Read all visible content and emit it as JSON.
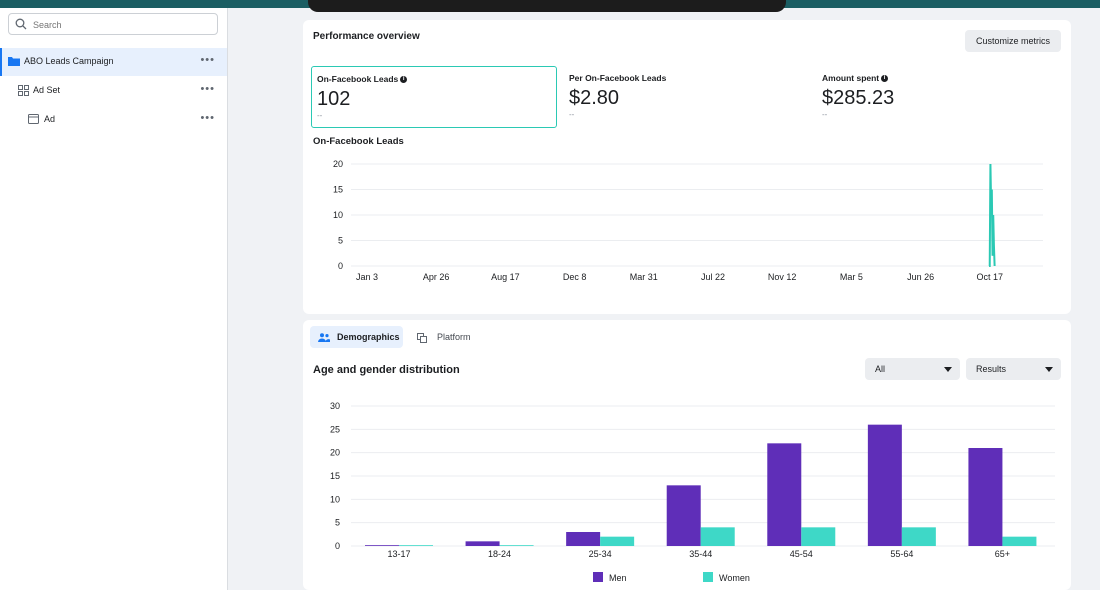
{
  "sidebar": {
    "search_placeholder": "Search",
    "items": [
      {
        "label": "ABO Leads Campaign",
        "icon": "folder-icon"
      },
      {
        "label": "Ad Set",
        "icon": "grid-icon"
      },
      {
        "label": "Ad",
        "icon": "ad-icon"
      }
    ],
    "more_label": "•••"
  },
  "performance": {
    "title": "Performance overview",
    "customize_label": "Customize metrics",
    "metrics": [
      {
        "label": "On-Facebook Leads",
        "value": "102",
        "sub": "--",
        "info": true
      },
      {
        "label": "Per On-Facebook Leads",
        "value": "$2.80",
        "sub": "--",
        "info": false
      },
      {
        "label": "Amount spent",
        "value": "$285.23",
        "sub": "--",
        "info": true
      }
    ],
    "info_glyph": "i",
    "accent_color": "#2bc9b4"
  },
  "line_chart_data": {
    "type": "line",
    "title": "On-Facebook Leads",
    "x_ticks": [
      "Jan 3",
      "Apr 26",
      "Aug 17",
      "Dec 8",
      "Mar 31",
      "Jul 22",
      "Nov 12",
      "Mar 5",
      "Jun 26",
      "Oct 17"
    ],
    "y_ticks": [
      0,
      5,
      10,
      15,
      20
    ],
    "ylim": [
      0,
      20
    ],
    "color": "#2bc9b4",
    "spike_series": [
      0,
      0,
      20,
      12,
      15,
      2,
      10,
      4,
      0
    ]
  },
  "breakdown": {
    "tabs": [
      {
        "label": "Demographics",
        "icon": "people-icon",
        "active": true
      },
      {
        "label": "Platform",
        "icon": "platform-icon",
        "active": false
      }
    ],
    "title": "Age and gender distribution",
    "filter_all": "All",
    "filter_results": "Results"
  },
  "chart_data": {
    "type": "bar",
    "title": "Age and gender distribution",
    "categories": [
      "13-17",
      "18-24",
      "25-34",
      "35-44",
      "45-54",
      "55-64",
      "65+"
    ],
    "series": [
      {
        "name": "Men",
        "values": [
          0,
          1,
          3,
          13,
          22,
          26,
          21
        ],
        "color": "#5f2eb8"
      },
      {
        "name": "Women",
        "values": [
          0,
          0,
          2,
          4,
          4,
          4,
          2
        ],
        "color": "#3ed8c7"
      }
    ],
    "y_ticks": [
      0,
      5,
      10,
      15,
      20,
      25,
      30
    ],
    "ylim": [
      0,
      30
    ],
    "grid": true,
    "legend": "bottom"
  }
}
